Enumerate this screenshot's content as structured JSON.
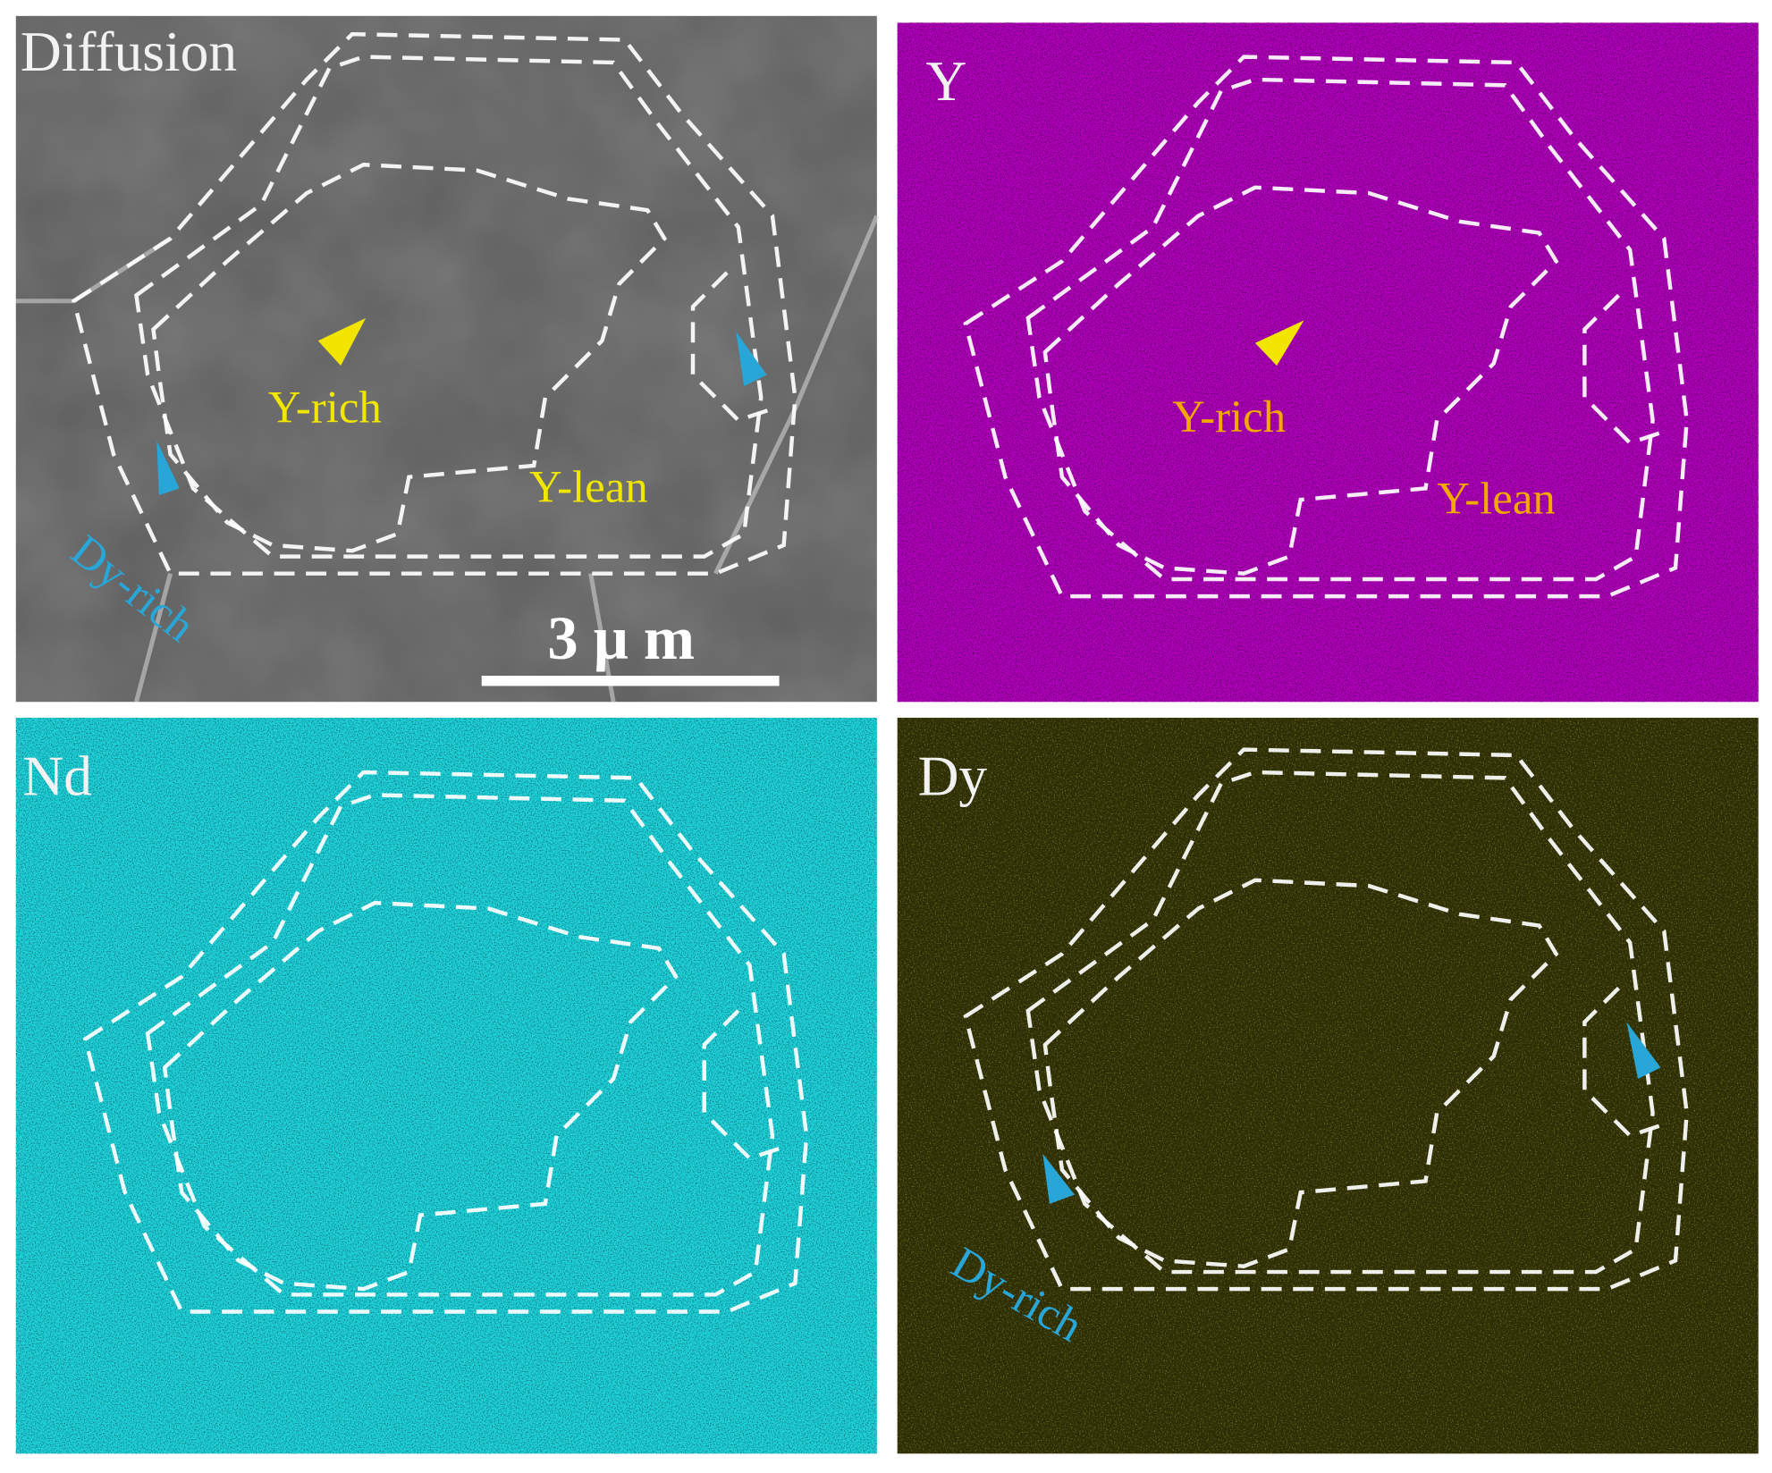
{
  "panels": [
    {
      "label": "Diffusion",
      "annotations": [
        "Y-rich",
        "Y-lean",
        "Dy-rich"
      ],
      "scale_bar": "3 μ m"
    },
    {
      "label": "Y",
      "annotations": [
        "Y-rich",
        "Y-lean"
      ]
    },
    {
      "label": "Nd"
    },
    {
      "label": "Dy",
      "annotations": [
        "Dy-rich"
      ]
    }
  ]
}
